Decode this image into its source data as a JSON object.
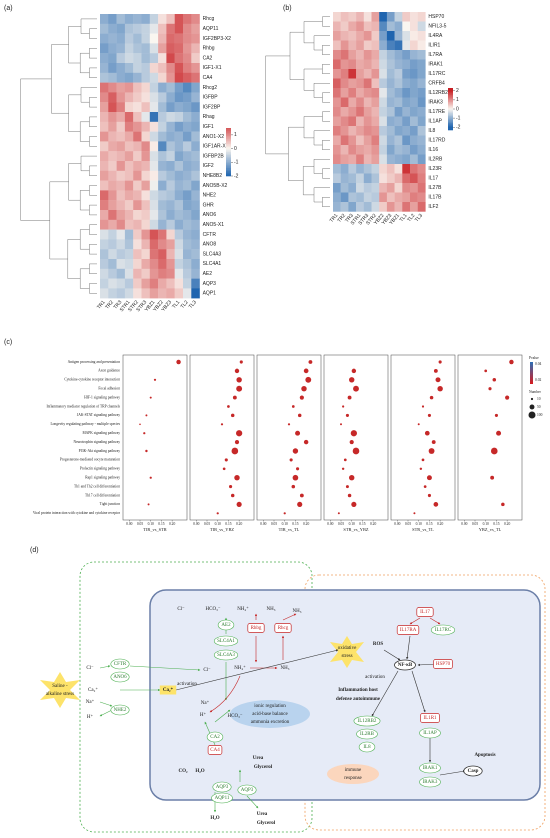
{
  "panel_labels": [
    "(a)",
    "(b)",
    "(c)",
    "(d)"
  ],
  "heatmap_a": {
    "rows": [
      "Rhcg",
      "AQP11",
      "IGF2BP3-X2",
      "Rhbg",
      "CA2",
      "IGF1-X1",
      "CA4",
      "Rhcg2",
      "IGFBP",
      "IGF2BP",
      "Rhag",
      "IGF1",
      "ANO1-X2",
      "IGF1AR-X1",
      "IGFBP2B",
      "IGF2",
      "NHE8B2",
      "ANO5B-X2",
      "NHE2",
      "GHR",
      "ANO6",
      "ANO5-X1",
      "CFTR",
      "ANO8",
      "SLC4A3",
      "SLC4A1",
      "AE2",
      "AQP3",
      "AQP1"
    ],
    "columns": [
      "TR1",
      "TR2",
      "TR3",
      "STR1",
      "STR2",
      "STR3",
      "YBZ1",
      "YBZ2",
      "YBZ3",
      "TL1",
      "TL2",
      "TL3"
    ],
    "clim": [
      -2,
      1.5
    ],
    "cticks": [
      1,
      0,
      -1,
      -2
    ],
    "values": [
      [
        -1,
        -1.2,
        -0.8,
        -1,
        -0.9,
        -1,
        -0.5,
        0.2,
        0.5,
        1.5,
        1.2,
        1
      ],
      [
        -0.8,
        -1,
        -1.1,
        -0.7,
        -0.6,
        -0.5,
        -0.2,
        0.5,
        1.2,
        1.5,
        1,
        0.8
      ],
      [
        -1,
        -0.9,
        -1,
        -0.6,
        -0.8,
        -0.5,
        0,
        0.6,
        1.3,
        1.2,
        1,
        0.9
      ],
      [
        -1.2,
        -1,
        -0.9,
        -0.5,
        -0.7,
        -0.8,
        -0.3,
        0.8,
        1.4,
        1.3,
        0.9,
        0.6
      ],
      [
        -1,
        -1.1,
        -0.6,
        -0.4,
        -0.5,
        -0.8,
        -0.6,
        0.2,
        1.6,
        1.2,
        1,
        0.4
      ],
      [
        -0.9,
        -1.2,
        -1,
        -0.8,
        -0.5,
        -0.6,
        0.3,
        0.5,
        1,
        1.5,
        1.1,
        0.9
      ],
      [
        -0.7,
        -0.8,
        -1,
        -1.1,
        -0.9,
        -0.6,
        -0.4,
        0.3,
        0.9,
        1.6,
        1.4,
        1.2
      ],
      [
        1.2,
        1,
        0.8,
        0.9,
        0.5,
        0.3,
        -0.5,
        -1,
        -0.8,
        -1.2,
        -1.5,
        -1.1
      ],
      [
        1,
        1.4,
        0.9,
        0.6,
        0.4,
        0.2,
        -0.3,
        -0.6,
        -1,
        -1.3,
        -1.2,
        -0.9
      ],
      [
        0.8,
        1.5,
        1.1,
        0.3,
        0.2,
        0.5,
        -0.2,
        -0.8,
        -1.2,
        -1,
        -1.1,
        -1.3
      ],
      [
        0.6,
        0.9,
        0.7,
        1.3,
        0.5,
        -0.2,
        -1.8,
        -0.6,
        -0.4,
        -0.5,
        -0.8,
        -1
      ],
      [
        0.5,
        0.8,
        0.4,
        1.1,
        0.9,
        0.6,
        0.2,
        -0.5,
        -0.9,
        -1.2,
        -1,
        -1.1
      ],
      [
        0.9,
        0.6,
        0.5,
        0.7,
        1.2,
        0.3,
        -0.4,
        -0.8,
        -1,
        -0.9,
        -1.2,
        -0.8
      ],
      [
        0.4,
        0.7,
        0.8,
        0.5,
        0.6,
        1,
        0.1,
        -1.5,
        -0.7,
        -0.9,
        -0.6,
        -1
      ],
      [
        0.7,
        0.5,
        0.6,
        0.8,
        0.4,
        0.9,
        -0.3,
        -0.7,
        -0.5,
        -1.1,
        -0.9,
        -0.8
      ],
      [
        0.6,
        0.4,
        0.9,
        0.5,
        0.7,
        0.6,
        -0.2,
        -0.9,
        -1,
        -0.7,
        -1,
        -0.9
      ],
      [
        0.8,
        0.6,
        0.4,
        0.5,
        0.9,
        0.3,
        0.1,
        -0.6,
        -0.8,
        -1,
        -0.9,
        -0.7
      ],
      [
        0.5,
        0.7,
        0.6,
        0.9,
        0.4,
        0.8,
        -0.1,
        -1,
        -0.6,
        -0.9,
        -0.8,
        -1.1
      ],
      [
        1.3,
        0.9,
        0.5,
        0.7,
        0.6,
        0.2,
        -0.4,
        -0.6,
        -0.7,
        -1,
        -1.2,
        -0.9
      ],
      [
        1.1,
        0.8,
        0.6,
        0.4,
        0.9,
        0.5,
        -0.3,
        -0.8,
        -0.9,
        -0.7,
        -1.1,
        -1
      ],
      [
        0.7,
        1.2,
        0.8,
        0.6,
        0.3,
        0.4,
        -0.2,
        -0.7,
        -1,
        -0.8,
        -0.9,
        -1.1
      ],
      [
        0.9,
        0.7,
        1,
        0.5,
        0.6,
        0.3,
        -0.4,
        -0.9,
        -0.6,
        -1,
        -0.8,
        -0.9
      ],
      [
        -0.3,
        -0.5,
        -0.2,
        -0.8,
        0.4,
        0.9,
        1.5,
        1.2,
        0.3,
        -0.6,
        -0.9,
        -1
      ],
      [
        -0.5,
        -0.6,
        -0.4,
        -0.7,
        0.2,
        0.6,
        1.3,
        1,
        0.8,
        -0.4,
        -0.8,
        -0.9
      ],
      [
        -0.7,
        -0.4,
        -0.6,
        -0.5,
        0.5,
        0.3,
        1.2,
        1.4,
        0.6,
        -0.3,
        -0.9,
        -0.8
      ],
      [
        -0.6,
        -0.8,
        -0.3,
        -0.4,
        0.3,
        0.7,
        1,
        1.3,
        0.9,
        -0.5,
        -0.7,
        -1
      ],
      [
        -0.4,
        -0.6,
        -0.8,
        -0.3,
        0.6,
        0.4,
        0.9,
        1.1,
        1,
        -0.2,
        -0.6,
        -0.9
      ],
      [
        -0.5,
        -0.3,
        -0.4,
        -0.6,
        0.4,
        0.8,
        1.1,
        0.7,
        0.5,
        0.2,
        -0.5,
        -1.6
      ],
      [
        -0.3,
        -0.5,
        -0.6,
        -0.4,
        0.2,
        0.5,
        0.8,
        0.6,
        0.7,
        0.4,
        -0.2,
        -2
      ]
    ]
  },
  "heatmap_b": {
    "rows": [
      "HSP70",
      "NFIL3-5",
      "IL4RA",
      "ILIR1",
      "IL7RA",
      "IRAK1",
      "IL17RC",
      "CRFB4",
      "IL12RB2",
      "IRAK3",
      "IL17RE",
      "IL1AP",
      "IL8",
      "IL17RD",
      "IL16",
      "IL2RB",
      "IL23R",
      "IL17",
      "IL27B",
      "IL17B",
      "ILF2"
    ],
    "columns": [
      "TR1",
      "TR2",
      "TR3",
      "STR1",
      "STR3",
      "STR2",
      "YBZ2",
      "YBZ3",
      "YBZ1",
      "TL1",
      "TL2",
      "TL3"
    ],
    "clim": [
      -2.3,
      2.3
    ],
    "cticks": [
      2,
      1,
      0,
      -1,
      -2
    ],
    "values": [
      [
        0.3,
        0.5,
        0.4,
        0.6,
        0.2,
        0.8,
        -2,
        -1.2,
        -0.5,
        0.4,
        0.2,
        0.3
      ],
      [
        0.6,
        0.4,
        0.7,
        0.9,
        0.5,
        0.6,
        -1.5,
        -0.8,
        -1,
        0,
        0.2,
        -0.4
      ],
      [
        0.8,
        0.6,
        0.5,
        0.7,
        0.9,
        0.4,
        -1.2,
        -2,
        -0.9,
        -0.3,
        0.1,
        0.2
      ],
      [
        0.5,
        0.9,
        0.6,
        0.8,
        0.4,
        0.5,
        -1,
        -1.6,
        -1.8,
        -0.2,
        0.3,
        0.1
      ],
      [
        1,
        1.2,
        0.8,
        0.6,
        0.9,
        0.7,
        -0.5,
        -0.8,
        -1,
        -1.2,
        -0.9,
        -0.8
      ],
      [
        1.3,
        0.9,
        1,
        0.7,
        0.8,
        0.6,
        -0.4,
        -0.7,
        -0.9,
        -1,
        -1.2,
        -1.1
      ],
      [
        0.9,
        1.1,
        1.8,
        0.8,
        0.6,
        0.9,
        -0.3,
        -0.8,
        -0.6,
        -1.2,
        -1.3,
        -1.1
      ],
      [
        1.4,
        1,
        0.8,
        0.9,
        1.2,
        0.5,
        -0.6,
        -0.9,
        -0.7,
        -1,
        -1.1,
        -0.9
      ],
      [
        1.2,
        0.8,
        1.1,
        0.7,
        0.9,
        1,
        -0.2,
        -0.8,
        -1,
        -1.3,
        -1.1,
        -1.2
      ],
      [
        0.9,
        1.3,
        0.7,
        1,
        0.6,
        0.8,
        -0.4,
        -0.9,
        -0.8,
        -1.1,
        -1,
        -1.3
      ],
      [
        1,
        0.7,
        0.9,
        1.2,
        0.8,
        0.6,
        -0.5,
        -0.7,
        -1.2,
        -0.9,
        -1.1,
        -1
      ],
      [
        0.8,
        1,
        1.2,
        0.6,
        0.9,
        0.7,
        -0.3,
        -1,
        -0.9,
        -1.2,
        -0.8,
        -1.1
      ],
      [
        1.1,
        0.9,
        0.6,
        0.8,
        1,
        0.9,
        -0.6,
        -0.8,
        -1.1,
        -1,
        -1.2,
        -0.7
      ],
      [
        0.7,
        1.2,
        0.9,
        0.5,
        0.8,
        1.1,
        -0.4,
        -0.9,
        -0.7,
        -1.3,
        -1,
        -0.9
      ],
      [
        0.9,
        0.6,
        1,
        0.8,
        0.7,
        0.9,
        -0.5,
        -1.1,
        -0.8,
        -0.9,
        -1.2,
        -1
      ],
      [
        1,
        0.8,
        0.7,
        1.1,
        0.6,
        0.8,
        -0.3,
        -0.9,
        -1,
        -1.1,
        -0.8,
        -1.2
      ],
      [
        -0.8,
        -1,
        -0.6,
        -0.9,
        -0.7,
        -0.5,
        0.3,
        0.5,
        0.2,
        1.8,
        1.2,
        1
      ],
      [
        -0.6,
        -0.9,
        -0.8,
        -0.5,
        -1,
        -0.7,
        0.2,
        0.4,
        0.6,
        1.3,
        1.5,
        1.1
      ],
      [
        -1.2,
        -0.8,
        -1,
        -0.4,
        -0.6,
        -0.5,
        0.6,
        0.8,
        0.3,
        1,
        0.9,
        1.2
      ],
      [
        -1,
        -1.3,
        -0.7,
        -0.8,
        -0.5,
        -0.6,
        0.9,
        0.5,
        0.7,
        0.8,
        1.1,
        1
      ],
      [
        -0.9,
        -0.7,
        -1.1,
        -0.6,
        -0.8,
        -0.4,
        0.4,
        0.9,
        0.6,
        1.2,
        0.8,
        1.3
      ]
    ]
  },
  "dotplot": {
    "categories": [
      "Antigen processing and presentation",
      "Axon guidance",
      "Cytokine-cytokine receptor interaction",
      "Focal adhesion",
      "HIF-1 signaling pathway",
      "Inflammatory mediator regulation of TRP channels",
      "JAK-STAT signaling pathway",
      "Longevity regulating pathway - multiple species",
      "MAPK signaling pathway",
      "Neurotrophin signaling pathway",
      "PI3K-Akt signaling pathway",
      "Progesterone-mediated oocyte maturation",
      "Prolactin signaling pathway",
      "Rap1 signaling pathway",
      "Th1 and Th2 cell differentiation",
      "Th17 cell differentiation",
      "Tight junction",
      "Viral protein interaction with cytokine and cytokine receptor"
    ],
    "xlim": [
      -0.02,
      0.26
    ],
    "xticks": [
      {
        "value": 0,
        "label": "0.00"
      },
      {
        "value": 0.05,
        "label": "0.05"
      },
      {
        "value": 0.1,
        "label": "0.10"
      },
      {
        "value": 0.15,
        "label": "0.15"
      },
      {
        "value": 0.2,
        "label": "0.20"
      }
    ],
    "color": "#c62828",
    "panels": [
      {
        "name": "TIR_vs_STR",
        "x": [
          0.23,
          null,
          0.12,
          null,
          0.1,
          null,
          0.08,
          0.05,
          0.07,
          null,
          0.08,
          null,
          null,
          0.1,
          null,
          null,
          0.09,
          null
        ],
        "sizes": [
          40,
          null,
          10,
          null,
          8,
          null,
          8,
          5,
          10,
          null,
          12,
          null,
          null,
          10,
          null,
          null,
          8,
          null
        ]
      },
      {
        "name": "TIR_vs_YBZ",
        "x": [
          0.21,
          0.19,
          0.2,
          0.2,
          0.18,
          0.15,
          0.17,
          0.12,
          0.2,
          0.19,
          0.18,
          0.14,
          0.13,
          0.19,
          0.16,
          0.17,
          0.2,
          0.1
        ],
        "sizes": [
          20,
          40,
          60,
          70,
          30,
          15,
          25,
          10,
          80,
          35,
          90,
          20,
          15,
          60,
          20,
          25,
          55,
          10
        ]
      },
      {
        "name": "TIR_vs_TL",
        "x": [
          0.22,
          0.2,
          0.21,
          0.19,
          0.18,
          0.14,
          0.17,
          0.12,
          0.16,
          0.2,
          0.15,
          0.13,
          0.16,
          0.15,
          0.14,
          0.18,
          0.17,
          0.1
        ],
        "sizes": [
          30,
          45,
          70,
          60,
          35,
          15,
          25,
          10,
          50,
          40,
          60,
          20,
          20,
          65,
          25,
          30,
          55,
          10
        ]
      },
      {
        "name": "STR_vs_YBZ",
        "x": [
          null,
          0.11,
          0.1,
          0.12,
          0.09,
          0.06,
          0.08,
          0.05,
          0.11,
          0.1,
          0.12,
          0.07,
          0.06,
          0.1,
          0.08,
          0.09,
          0.11,
          0.04
        ],
        "sizes": [
          null,
          40,
          60,
          70,
          30,
          10,
          20,
          8,
          80,
          35,
          90,
          15,
          12,
          60,
          18,
          25,
          55,
          8
        ]
      },
      {
        "name": "STR_vs_TL",
        "x": [
          0.2,
          0.18,
          0.19,
          0.2,
          0.16,
          0.12,
          0.15,
          0.1,
          0.14,
          0.17,
          0.16,
          0.12,
          0.11,
          0.15,
          0.13,
          0.15,
          0.18,
          0.08
        ],
        "sizes": [
          20,
          30,
          50,
          60,
          25,
          10,
          20,
          8,
          45,
          30,
          70,
          15,
          12,
          50,
          15,
          20,
          45,
          8
        ]
      },
      {
        "name": "YBZ_vs_TL",
        "x": [
          0.22,
          0.1,
          0.14,
          0.12,
          0.2,
          null,
          0.15,
          null,
          0.16,
          null,
          0.14,
          null,
          null,
          0.13,
          null,
          null,
          0.18,
          null
        ],
        "sizes": [
          40,
          15,
          25,
          20,
          35,
          null,
          20,
          null,
          50,
          null,
          90,
          null,
          null,
          30,
          null,
          null,
          25,
          null
        ]
      }
    ],
    "pvalue_legend": {
      "title": "Pvalue",
      "ticks": [
        0.04,
        0.02
      ]
    },
    "size_legend": {
      "title": "Number",
      "ticks": [
        10,
        50,
        100
      ]
    }
  },
  "figure_d": {
    "labels": [
      "Cl⁻",
      "HCO₃⁻",
      "NH₄⁺",
      "NH₃",
      "NH₃",
      "AE2",
      "SLC4A1",
      "SLC4A3",
      "Rhbg",
      "Rhcg",
      "CFTR",
      "ANO6",
      "Cl⁻",
      "Cl⁻",
      "NH₄⁺",
      "NH₃",
      "activation",
      "Saline -",
      "alkaline stress",
      "Ca₂⁺",
      "Ca₂⁺",
      "Na⁺",
      "Na⁺",
      "NHE2",
      "H⁺",
      "H⁺",
      "HCO₃⁻",
      "CA2",
      "CA4",
      "CO₂",
      "H₂O",
      "ionic regulation",
      "acid-base balance",
      "ammonia excretion",
      "Urea",
      "Glycerol",
      "AQP3",
      "AQP11",
      "AQP3",
      "H₂O",
      "Urea",
      "Glycerol",
      "oxidative",
      "stress",
      "ROS",
      "IL17",
      "IL17RA",
      "IL17RC",
      "activation",
      "NF-κB",
      "HSP70",
      "Inflammation host",
      "defense autoimmune",
      "IL12RB2",
      "IL2RB",
      "IL8",
      "IL1R1",
      "IL1AP",
      "IRAK1",
      "IRAK3",
      "Apoptosis",
      "Casp",
      "immune",
      "response"
    ]
  }
}
